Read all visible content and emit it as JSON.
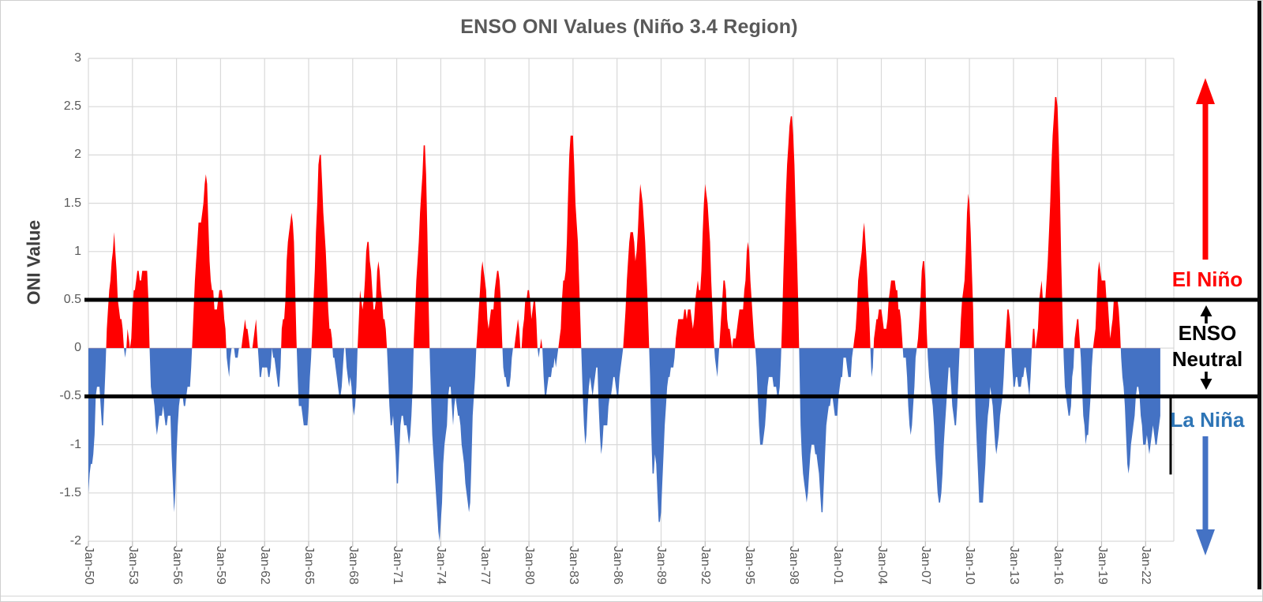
{
  "chart_data": {
    "type": "area",
    "title": "ENSO ONI Values (Niño 3.4 Region)",
    "ylabel": "ONI Value",
    "ylim": [
      -2,
      3
    ],
    "grid": true,
    "y_ticks": [
      3,
      2.5,
      2,
      1.5,
      1,
      0.5,
      0,
      -0.5,
      -1,
      -1.5,
      -2
    ],
    "x_tick_labels": [
      "Jan-50",
      "Jan-53",
      "Jan-56",
      "Jan-59",
      "Jan-62",
      "Jan-65",
      "Jan-68",
      "Jan-71",
      "Jan-74",
      "Jan-77",
      "Jan-80",
      "Jan-83",
      "Jan-86",
      "Jan-89",
      "Jan-92",
      "Jan-95",
      "Jan-98",
      "Jan-01",
      "Jan-04",
      "Jan-07",
      "Jan-10",
      "Jan-13",
      "Jan-16",
      "Jan-19",
      "Jan-22"
    ],
    "x_tick_interval_months": 36,
    "x_axis_total_months": 887,
    "x_start_label": "Jan-50",
    "x_end_label": "Jan-23",
    "thresholds": {
      "el_nino": 0.5,
      "la_nina": -0.5
    },
    "colors": {
      "el_nino_area": "#ff0000",
      "la_nina_area": "#4472c4",
      "el_nino_accent": "#ff0000",
      "la_nina_arrow": "#4472c4",
      "la_nina_text": "#2e75b6",
      "neutral_text": "#000000",
      "threshold_line": "#000000",
      "grid": "#d9d9d9",
      "axis": "#bfbfbf",
      "tick_text": "#595959",
      "title_text": "#595959"
    },
    "series": [
      {
        "name": "ONI",
        "start": "Jan-1950",
        "monthly_values": [
          -1.5,
          -1.3,
          -1.2,
          -1.2,
          -1.1,
          -0.9,
          -0.5,
          -0.4,
          -0.4,
          -0.4,
          -0.6,
          -0.8,
          -0.8,
          -0.5,
          -0.2,
          0.2,
          0.4,
          0.6,
          0.7,
          0.9,
          1.0,
          1.2,
          1.0,
          0.8,
          0.5,
          0.4,
          0.3,
          0.3,
          0.2,
          0.0,
          -0.1,
          0.0,
          0.2,
          0.1,
          0.0,
          0.1,
          0.4,
          0.6,
          0.6,
          0.7,
          0.8,
          0.8,
          0.7,
          0.7,
          0.8,
          0.8,
          0.8,
          0.8,
          0.8,
          0.5,
          0.0,
          -0.4,
          -0.5,
          -0.5,
          -0.6,
          -0.8,
          -0.9,
          -0.8,
          -0.7,
          -0.7,
          -0.7,
          -0.6,
          -0.7,
          -0.8,
          -0.8,
          -0.7,
          -0.7,
          -0.7,
          -1.1,
          -1.4,
          -1.7,
          -1.5,
          -1.1,
          -0.8,
          -0.6,
          -0.5,
          -0.5,
          -0.5,
          -0.6,
          -0.6,
          -0.5,
          -0.4,
          -0.4,
          -0.4,
          -0.2,
          0.1,
          0.4,
          0.7,
          0.9,
          1.1,
          1.3,
          1.3,
          1.3,
          1.4,
          1.5,
          1.7,
          1.8,
          1.7,
          1.3,
          0.9,
          0.7,
          0.6,
          0.6,
          0.4,
          0.4,
          0.4,
          0.5,
          0.6,
          0.6,
          0.6,
          0.5,
          0.3,
          0.2,
          -0.1,
          -0.2,
          -0.3,
          -0.1,
          0.0,
          0.0,
          0.0,
          -0.1,
          -0.1,
          -0.1,
          0.0,
          0.0,
          0.0,
          0.1,
          0.2,
          0.3,
          0.2,
          0.2,
          0.1,
          0.0,
          0.0,
          0.0,
          0.1,
          0.2,
          0.3,
          0.1,
          -0.1,
          -0.3,
          -0.3,
          -0.2,
          -0.2,
          -0.2,
          -0.2,
          -0.2,
          -0.3,
          -0.3,
          -0.2,
          0.0,
          -0.1,
          -0.1,
          -0.2,
          -0.3,
          -0.4,
          -0.4,
          -0.2,
          0.2,
          0.3,
          0.3,
          0.5,
          0.9,
          1.1,
          1.2,
          1.3,
          1.4,
          1.3,
          1.1,
          0.6,
          0.1,
          -0.3,
          -0.6,
          -0.6,
          -0.6,
          -0.7,
          -0.8,
          -0.8,
          -0.8,
          -0.8,
          -0.6,
          -0.3,
          -0.1,
          0.2,
          0.5,
          0.8,
          1.2,
          1.5,
          1.9,
          2.0,
          2.0,
          1.7,
          1.4,
          1.2,
          1.0,
          0.7,
          0.4,
          0.2,
          0.2,
          0.1,
          -0.1,
          -0.1,
          -0.2,
          -0.3,
          -0.4,
          -0.5,
          -0.5,
          -0.4,
          -0.2,
          0.0,
          0.0,
          -0.2,
          -0.3,
          -0.4,
          -0.3,
          -0.4,
          -0.6,
          -0.7,
          -0.6,
          -0.4,
          0.0,
          0.3,
          0.6,
          0.5,
          0.4,
          0.5,
          0.7,
          1.0,
          1.1,
          1.1,
          0.9,
          0.8,
          0.6,
          0.4,
          0.4,
          0.5,
          0.8,
          0.9,
          0.8,
          0.6,
          0.5,
          0.3,
          0.3,
          0.2,
          0.0,
          -0.3,
          -0.6,
          -0.8,
          -0.8,
          -0.7,
          -0.9,
          -1.1,
          -1.4,
          -1.4,
          -1.1,
          -0.8,
          -0.7,
          -0.7,
          -0.8,
          -0.8,
          -0.8,
          -0.9,
          -1.0,
          -0.9,
          -0.7,
          -0.4,
          0.1,
          0.4,
          0.7,
          0.9,
          1.1,
          1.4,
          1.6,
          1.8,
          2.1,
          2.1,
          1.8,
          1.2,
          0.5,
          -0.1,
          -0.5,
          -0.9,
          -1.1,
          -1.3,
          -1.5,
          -1.7,
          -1.9,
          -2.0,
          -1.8,
          -1.6,
          -1.2,
          -1.0,
          -0.9,
          -0.8,
          -0.5,
          -0.4,
          -0.4,
          -0.6,
          -0.8,
          -0.6,
          -0.5,
          -0.6,
          -0.7,
          -0.7,
          -0.8,
          -1.0,
          -1.1,
          -1.2,
          -1.4,
          -1.5,
          -1.6,
          -1.7,
          -1.6,
          -1.2,
          -0.7,
          -0.5,
          -0.3,
          0.0,
          0.2,
          0.4,
          0.6,
          0.8,
          0.9,
          0.8,
          0.7,
          0.6,
          0.3,
          0.2,
          0.3,
          0.4,
          0.4,
          0.4,
          0.6,
          0.7,
          0.8,
          0.8,
          0.7,
          0.5,
          0.1,
          -0.2,
          -0.3,
          -0.3,
          -0.4,
          -0.4,
          -0.4,
          -0.3,
          -0.1,
          0.0,
          0.0,
          0.1,
          0.2,
          0.3,
          0.2,
          0.0,
          0.0,
          0.2,
          0.3,
          0.5,
          0.5,
          0.6,
          0.6,
          0.5,
          0.3,
          0.4,
          0.5,
          0.5,
          0.3,
          0.0,
          -0.1,
          0.0,
          0.1,
          0.0,
          -0.3,
          -0.5,
          -0.5,
          -0.4,
          -0.3,
          -0.3,
          -0.3,
          -0.2,
          -0.2,
          -0.1,
          -0.2,
          -0.1,
          0.0,
          0.1,
          0.2,
          0.5,
          0.7,
          0.7,
          0.8,
          1.1,
          1.6,
          2.0,
          2.2,
          2.2,
          2.2,
          1.9,
          1.5,
          1.3,
          1.1,
          0.7,
          0.3,
          -0.1,
          -0.5,
          -0.8,
          -1.0,
          -0.9,
          -0.6,
          -0.4,
          -0.3,
          -0.4,
          -0.5,
          -0.4,
          -0.3,
          -0.2,
          -0.2,
          -0.6,
          -0.9,
          -1.1,
          -1.0,
          -0.8,
          -0.8,
          -0.8,
          -0.8,
          -0.6,
          -0.5,
          -0.5,
          -0.4,
          -0.3,
          -0.3,
          -0.4,
          -0.5,
          -0.5,
          -0.3,
          -0.2,
          -0.1,
          0.0,
          0.2,
          0.4,
          0.7,
          0.9,
          1.1,
          1.2,
          1.2,
          1.2,
          1.1,
          0.9,
          1.0,
          1.2,
          1.5,
          1.7,
          1.6,
          1.5,
          1.3,
          1.1,
          0.8,
          0.5,
          0.1,
          -0.3,
          -0.9,
          -1.3,
          -1.3,
          -1.1,
          -1.2,
          -1.5,
          -1.8,
          -1.8,
          -1.7,
          -1.4,
          -1.1,
          -0.8,
          -0.6,
          -0.4,
          -0.3,
          -0.3,
          -0.2,
          -0.2,
          -0.2,
          -0.1,
          0.1,
          0.2,
          0.3,
          0.3,
          0.3,
          0.3,
          0.3,
          0.4,
          0.4,
          0.3,
          0.4,
          0.4,
          0.4,
          0.3,
          0.2,
          0.3,
          0.5,
          0.6,
          0.7,
          0.6,
          0.6,
          0.8,
          1.2,
          1.5,
          1.7,
          1.6,
          1.5,
          1.3,
          1.1,
          0.7,
          0.4,
          0.1,
          -0.1,
          -0.2,
          -0.3,
          -0.1,
          0.1,
          0.3,
          0.5,
          0.7,
          0.7,
          0.6,
          0.3,
          0.2,
          0.2,
          0.1,
          0.0,
          0.1,
          0.1,
          0.1,
          0.2,
          0.3,
          0.4,
          0.4,
          0.4,
          0.4,
          0.6,
          0.7,
          1.0,
          1.1,
          1.0,
          0.7,
          0.5,
          0.3,
          0.1,
          0.0,
          -0.2,
          -0.5,
          -0.8,
          -1.0,
          -1.0,
          -1.0,
          -0.9,
          -0.8,
          -0.6,
          -0.4,
          -0.3,
          -0.3,
          -0.3,
          -0.3,
          -0.4,
          -0.4,
          -0.4,
          -0.5,
          -0.5,
          -0.4,
          -0.1,
          0.3,
          0.8,
          1.2,
          1.6,
          1.9,
          2.1,
          2.3,
          2.4,
          2.4,
          2.2,
          1.9,
          1.4,
          1.0,
          0.5,
          -0.1,
          -0.8,
          -1.1,
          -1.3,
          -1.4,
          -1.5,
          -1.6,
          -1.5,
          -1.3,
          -1.1,
          -1.0,
          -1.0,
          -1.0,
          -1.1,
          -1.1,
          -1.2,
          -1.3,
          -1.5,
          -1.7,
          -1.7,
          -1.4,
          -1.1,
          -0.8,
          -0.7,
          -0.6,
          -0.6,
          -0.5,
          -0.5,
          -0.6,
          -0.7,
          -0.7,
          -0.7,
          -0.5,
          -0.4,
          -0.3,
          -0.3,
          -0.1,
          -0.1,
          -0.1,
          -0.2,
          -0.3,
          -0.3,
          -0.3,
          -0.1,
          0.0,
          0.1,
          0.2,
          0.4,
          0.7,
          0.8,
          0.9,
          1.0,
          1.2,
          1.3,
          1.1,
          0.9,
          0.6,
          0.4,
          0.0,
          -0.3,
          -0.2,
          0.1,
          0.2,
          0.3,
          0.3,
          0.4,
          0.4,
          0.4,
          0.3,
          0.2,
          0.2,
          0.2,
          0.3,
          0.5,
          0.6,
          0.7,
          0.7,
          0.7,
          0.7,
          0.6,
          0.6,
          0.4,
          0.4,
          0.3,
          0.1,
          -0.1,
          -0.1,
          -0.1,
          -0.3,
          -0.6,
          -0.8,
          -0.9,
          -0.8,
          -0.6,
          -0.4,
          -0.1,
          0.0,
          0.1,
          0.3,
          0.5,
          0.8,
          0.9,
          0.9,
          0.7,
          0.2,
          -0.1,
          -0.3,
          -0.4,
          -0.5,
          -0.6,
          -0.8,
          -1.1,
          -1.3,
          -1.5,
          -1.6,
          -1.6,
          -1.5,
          -1.3,
          -1.0,
          -0.8,
          -0.6,
          -0.4,
          -0.2,
          -0.2,
          -0.4,
          -0.6,
          -0.7,
          -0.8,
          -0.8,
          -0.6,
          -0.3,
          0.0,
          0.3,
          0.5,
          0.6,
          0.7,
          1.0,
          1.4,
          1.6,
          1.5,
          1.2,
          0.8,
          0.4,
          -0.2,
          -0.7,
          -1.0,
          -1.3,
          -1.6,
          -1.6,
          -1.6,
          -1.6,
          -1.4,
          -1.2,
          -0.9,
          -0.7,
          -0.6,
          -0.4,
          -0.5,
          -0.6,
          -0.8,
          -1.0,
          -1.1,
          -1.0,
          -0.9,
          -0.7,
          -0.6,
          -0.5,
          -0.3,
          0.0,
          0.2,
          0.4,
          0.4,
          0.3,
          0.1,
          -0.2,
          -0.4,
          -0.4,
          -0.3,
          -0.3,
          -0.4,
          -0.4,
          -0.4,
          -0.3,
          -0.3,
          -0.2,
          -0.2,
          -0.3,
          -0.4,
          -0.5,
          -0.3,
          0.0,
          0.2,
          0.2,
          0.0,
          0.1,
          0.2,
          0.5,
          0.6,
          0.7,
          0.5,
          0.5,
          0.5,
          0.7,
          0.9,
          1.2,
          1.5,
          1.9,
          2.2,
          2.4,
          2.6,
          2.6,
          2.5,
          2.1,
          1.6,
          0.9,
          0.4,
          -0.1,
          -0.4,
          -0.5,
          -0.6,
          -0.7,
          -0.7,
          -0.6,
          -0.3,
          -0.2,
          0.1,
          0.2,
          0.3,
          0.3,
          0.1,
          -0.1,
          -0.4,
          -0.7,
          -0.8,
          -1.0,
          -0.9,
          -0.9,
          -0.7,
          -0.5,
          -0.2,
          0.0,
          0.1,
          0.2,
          0.5,
          0.8,
          0.9,
          0.8,
          0.7,
          0.7,
          0.7,
          0.7,
          0.5,
          0.5,
          0.3,
          0.1,
          0.2,
          0.3,
          0.5,
          0.5,
          0.5,
          0.5,
          0.4,
          0.2,
          -0.1,
          -0.3,
          -0.4,
          -0.6,
          -0.9,
          -1.2,
          -1.3,
          -1.2,
          -1.0,
          -0.9,
          -0.8,
          -0.7,
          -0.5,
          -0.4,
          -0.4,
          -0.5,
          -0.7,
          -0.8,
          -1.0,
          -1.0,
          -1.0,
          -0.9,
          -1.0,
          -1.1,
          -1.0,
          -0.9,
          -0.8,
          -0.9,
          -1.0,
          -1.0,
          -0.9,
          -0.8,
          -0.7
        ]
      }
    ]
  },
  "annotations": {
    "el_nino": {
      "label": "El Niño",
      "color": "#ff0000",
      "arrow": "up"
    },
    "neutral": {
      "line1": "ENSO",
      "line2": "Neutral",
      "color": "#000000"
    },
    "la_nina": {
      "label": "La Niña",
      "color": "#2e75b6",
      "arrow": "down"
    }
  }
}
